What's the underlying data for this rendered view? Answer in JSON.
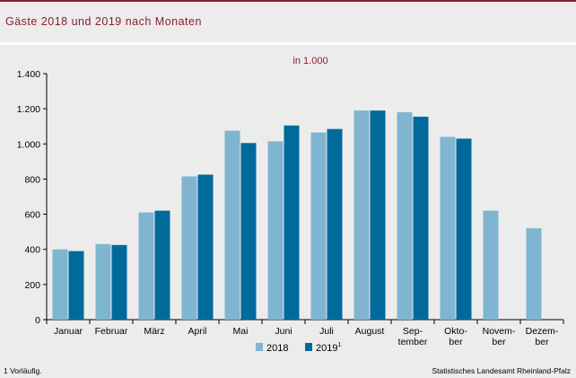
{
  "title": "Gäste 2018 und 2019 nach Monaten",
  "footnote": "1 Vorläufig.",
  "source": "Statistisches Landesamt Rheinland-Pfalz",
  "colors": {
    "s2018": "#7fb5d0",
    "s2019": "#006a9b",
    "accent": "#8c1d2e",
    "background": "#ececec"
  },
  "chart_data": {
    "type": "bar",
    "subtitle": "in 1.000",
    "categories": [
      [
        "Januar"
      ],
      [
        "Februar"
      ],
      [
        "März"
      ],
      [
        "April"
      ],
      [
        "Mai"
      ],
      [
        "Juni"
      ],
      [
        "Juli"
      ],
      [
        "August"
      ],
      [
        "Sep-",
        "tember"
      ],
      [
        "Okto-",
        "ber"
      ],
      [
        "Novem-",
        "ber"
      ],
      [
        "Dezem-",
        "ber"
      ]
    ],
    "series": [
      {
        "name": "2018",
        "values": [
          400,
          430,
          610,
          815,
          1075,
          1015,
          1065,
          1190,
          1180,
          1040,
          620,
          520
        ]
      },
      {
        "name": "2019",
        "superscript": "1",
        "values": [
          390,
          425,
          620,
          825,
          1005,
          1105,
          1085,
          1190,
          1155,
          1030,
          null,
          null
        ]
      }
    ],
    "ylim": [
      0,
      1400
    ],
    "yticks": [
      0,
      200,
      400,
      600,
      800,
      1000,
      1200,
      1400
    ],
    "ytick_labels": [
      "0",
      "200",
      "400",
      "600",
      "800",
      "1.000",
      "1.200",
      "1.400"
    ],
    "grid": false,
    "legend": "bottom-center"
  }
}
